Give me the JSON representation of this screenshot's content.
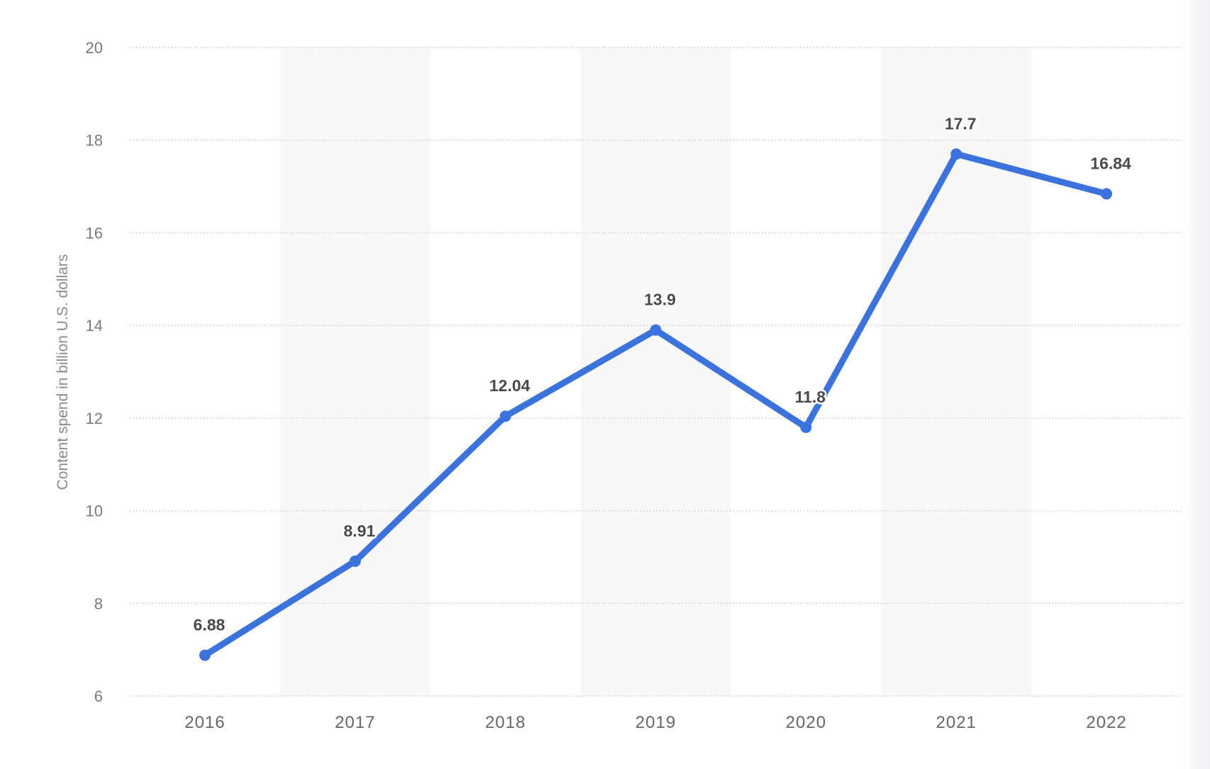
{
  "chart_data": {
    "type": "line",
    "title": "",
    "xlabel": "",
    "ylabel": "Content spend in billion U.S. dollars",
    "categories": [
      "2016",
      "2017",
      "2018",
      "2019",
      "2020",
      "2021",
      "2022"
    ],
    "series": [
      {
        "name": "Content spend",
        "values": [
          6.88,
          8.91,
          12.04,
          13.9,
          11.8,
          17.7,
          16.84
        ],
        "color": "#3B72DB"
      }
    ],
    "data_labels": [
      "6.88",
      "8.91",
      "12.04",
      "13.9",
      "11.8",
      "17.7",
      "16.84"
    ],
    "ylim": [
      6,
      20
    ],
    "yticks": [
      6,
      8,
      10,
      12,
      14,
      16,
      18,
      20
    ],
    "grid": true,
    "legend": "none"
  },
  "colors": {
    "line": "#3B72DB",
    "band": "#F8F8F8",
    "grid": "#C8C8C8"
  }
}
